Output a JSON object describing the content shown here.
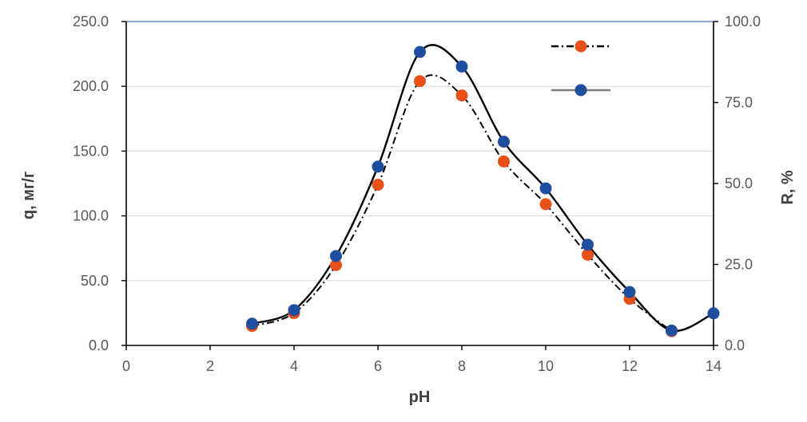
{
  "chart_data": {
    "type": "line",
    "xlabel": "pH",
    "ylabel": "q, мг/г",
    "y2label": "R, %",
    "xlim": [
      0,
      14
    ],
    "ylim": [
      0,
      250
    ],
    "y2lim": [
      0,
      100
    ],
    "x_ticks": [
      "0",
      "2",
      "4",
      "6",
      "8",
      "10",
      "12",
      "14"
    ],
    "y_ticks": [
      "0.0",
      "50.0",
      "100.0",
      "150.0",
      "200.0",
      "250.0"
    ],
    "y2_ticks": [
      "0.0",
      "25.0",
      "50.0",
      "75.0",
      "100.0"
    ],
    "grid": true,
    "legend_position": "top-right",
    "series": [
      {
        "axis": "left",
        "color": "#e8501a",
        "line": "dash-dot",
        "x": [
          3,
          4,
          5,
          6,
          7,
          8,
          9,
          10,
          11,
          12,
          13
        ],
        "values": [
          15,
          25,
          62,
          124,
          204,
          193,
          142,
          109,
          70,
          36,
          11
        ]
      },
      {
        "axis": "right",
        "color": "#1f4e9f",
        "line": "solid",
        "x": [
          3,
          4,
          5,
          6,
          7,
          8,
          9,
          10,
          11,
          12,
          13,
          14
        ],
        "values": [
          6.7,
          10.9,
          27.6,
          55.2,
          90.6,
          86.1,
          62.9,
          48.5,
          31.1,
          16.5,
          4.6,
          9.9
        ]
      }
    ]
  }
}
